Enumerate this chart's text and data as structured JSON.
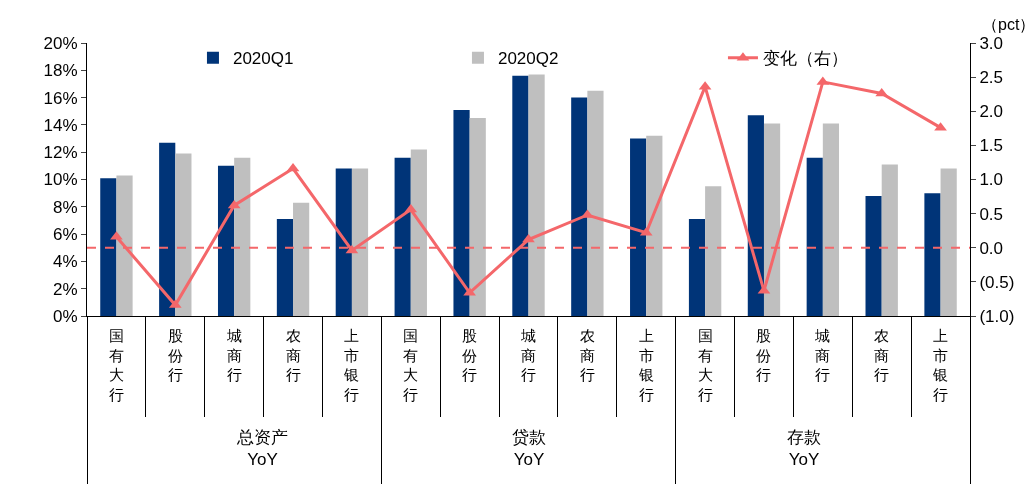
{
  "chart_data": {
    "type": "bar",
    "categories": [
      "国有大行",
      "股份行",
      "城商行",
      "农商行",
      "上市银行",
      "国有大行",
      "股份行",
      "城商行",
      "农商行",
      "上市银行",
      "国有大行",
      "股份行",
      "城商行",
      "农商行",
      "上市银行"
    ],
    "series": [
      {
        "name": "2020Q1",
        "color": "#003478",
        "values": [
          10.1,
          12.7,
          11.0,
          7.1,
          10.8,
          11.6,
          15.1,
          17.6,
          16.0,
          13.0,
          7.1,
          14.7,
          11.6,
          8.8,
          9.0
        ]
      },
      {
        "name": "2020Q2",
        "color": "#bfbfbf",
        "values": [
          10.3,
          11.9,
          11.6,
          8.3,
          10.8,
          12.2,
          14.5,
          17.7,
          16.5,
          13.2,
          9.5,
          14.1,
          14.1,
          11.1,
          10.8
        ]
      },
      {
        "name": "变化（右）",
        "type": "line",
        "axis": "y2",
        "color": "#f4676a",
        "marker": "triangle",
        "values": [
          0.16,
          -0.84,
          0.62,
          1.16,
          -0.04,
          0.56,
          -0.66,
          0.12,
          0.48,
          0.22,
          2.36,
          -0.63,
          2.43,
          2.26,
          1.76
        ]
      }
    ],
    "ylim": [
      0,
      20
    ],
    "yticks": [
      {
        "value": 0,
        "label": "0%"
      },
      {
        "value": 2,
        "label": "2%"
      },
      {
        "value": 4,
        "label": "4%"
      },
      {
        "value": 6,
        "label": "6%"
      },
      {
        "value": 8,
        "label": "8%"
      },
      {
        "value": 10,
        "label": "10%"
      },
      {
        "value": 12,
        "label": "12%"
      },
      {
        "value": 14,
        "label": "14%"
      },
      {
        "value": 16,
        "label": "16%"
      },
      {
        "value": 18,
        "label": "18%"
      },
      {
        "value": 20,
        "label": "20%"
      }
    ],
    "y2lim": [
      -1,
      3
    ],
    "y2ticks": [
      {
        "value": -1,
        "label": "(1.0)"
      },
      {
        "value": -0.5,
        "label": "(0.5)"
      },
      {
        "value": 0,
        "label": "0.0"
      },
      {
        "value": 0.5,
        "label": "0.5"
      },
      {
        "value": 1,
        "label": "1.0"
      },
      {
        "value": 1.5,
        "label": "1.5"
      },
      {
        "value": 2,
        "label": "2.0"
      },
      {
        "value": 2.5,
        "label": "2.5"
      },
      {
        "value": 3,
        "label": "3.0"
      }
    ],
    "ref_lines": [
      {
        "axis": "y2",
        "value": 0,
        "color": "#f4676a",
        "line_style": "dashed"
      }
    ],
    "annotations": [
      "（pct）",
      "总资产\nYoY",
      "贷款\nYoY",
      "存款\nYoY"
    ],
    "legend": "top",
    "grid": false
  }
}
